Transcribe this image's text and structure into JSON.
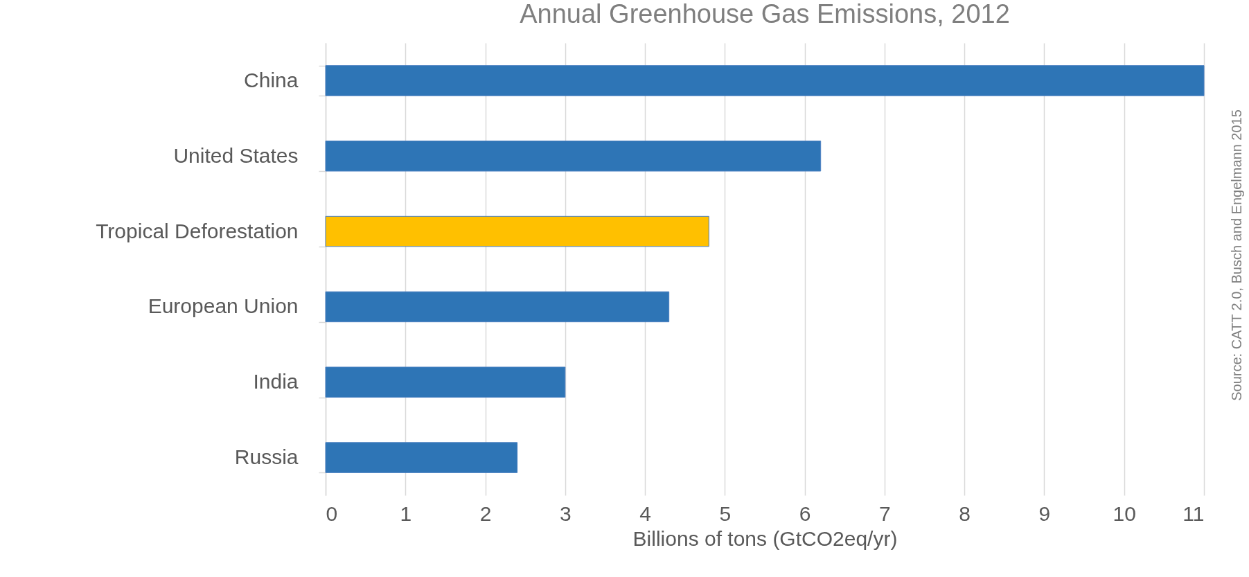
{
  "chart_data": {
    "type": "bar",
    "orientation": "horizontal",
    "title": "Annual Greenhouse Gas Emissions, 2012",
    "xlabel": "Billions  of tons (GtCO2eq/yr)",
    "categories": [
      "China",
      "United States",
      "Tropical Deforestation",
      "European Union",
      "India",
      "Russia"
    ],
    "values": [
      11,
      6.2,
      4.8,
      4.3,
      3.0,
      2.4
    ],
    "colors": [
      "#2e75b6",
      "#2e75b6",
      "#ffc000",
      "#2e75b6",
      "#2e75b6",
      "#2e75b6"
    ],
    "xlim": [
      0,
      11
    ],
    "xticks": [
      0,
      1,
      2,
      3,
      4,
      5,
      6,
      7,
      8,
      9,
      10,
      11
    ],
    "grid": "x",
    "annotations": [
      "Source: CATT 2.0, Busch and Engelmann 2015"
    ]
  }
}
